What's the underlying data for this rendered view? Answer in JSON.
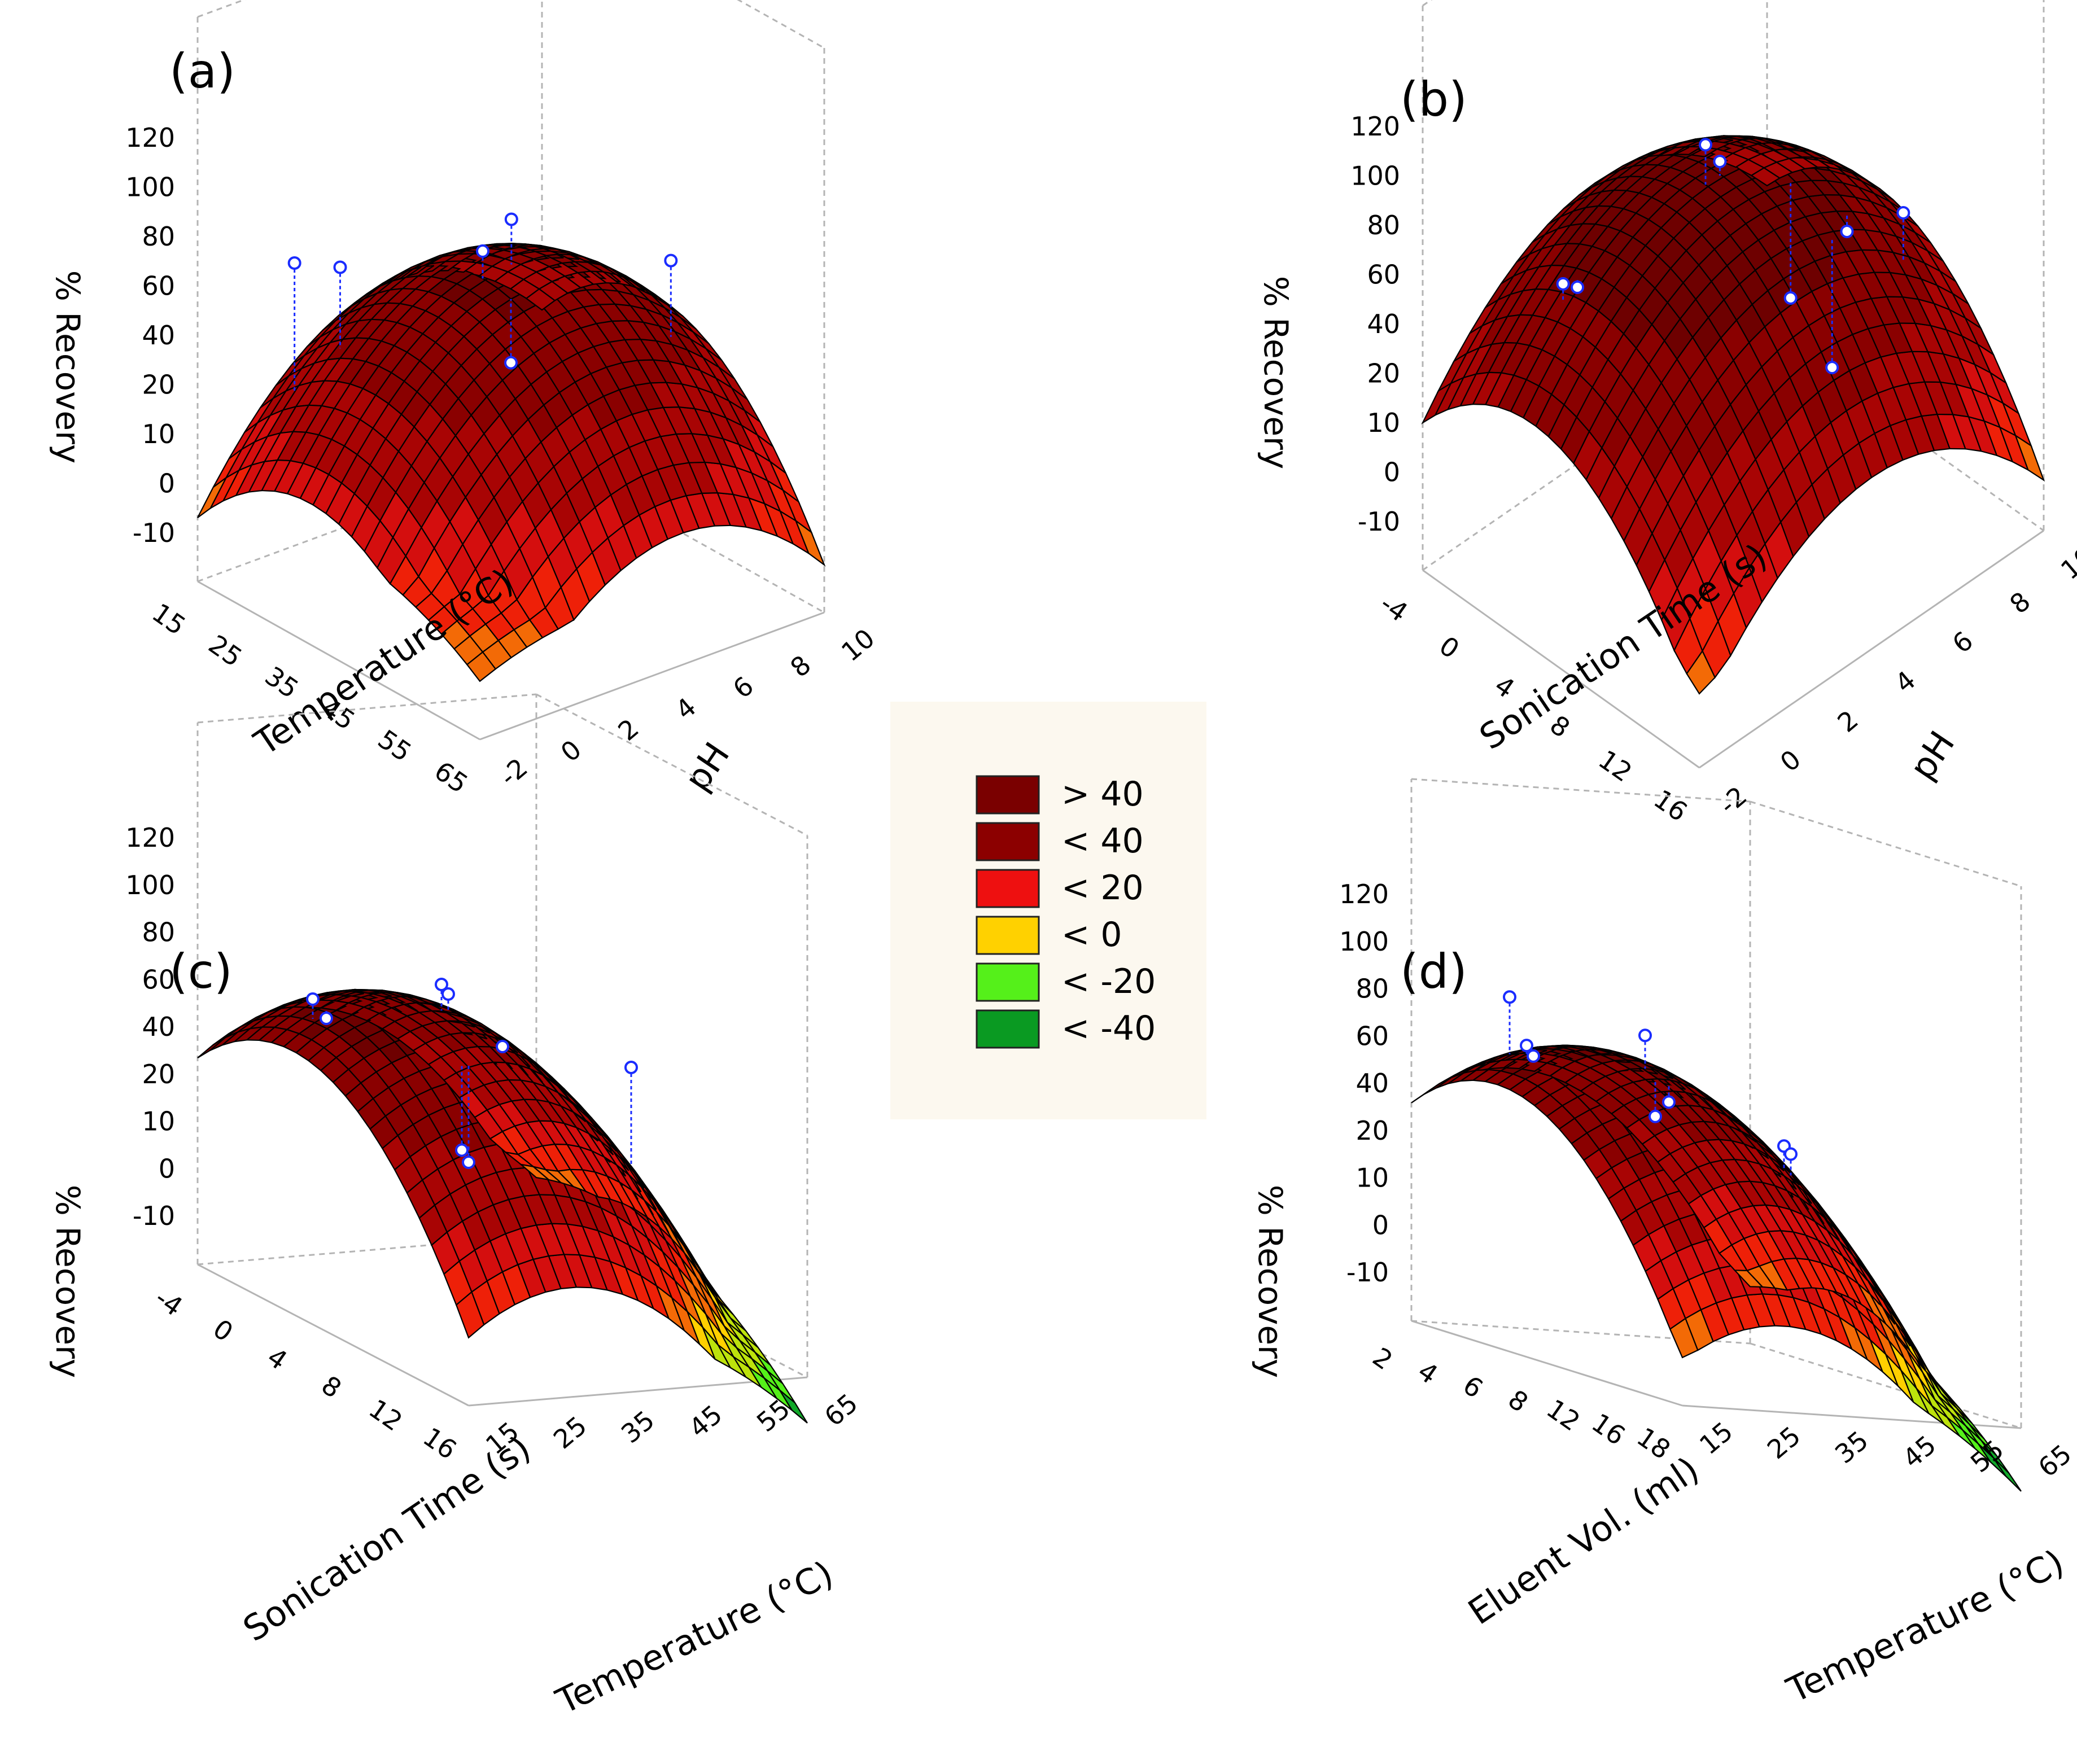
{
  "legend": {
    "background": "#fcf8ef",
    "items": [
      {
        "label": "> 40",
        "color": "#7a0000"
      },
      {
        "label": "< 40",
        "color": "#8c0000"
      },
      {
        "label": "< 20",
        "color": "#ee1010"
      },
      {
        "label": "< 0",
        "color": "#ffd100"
      },
      {
        "label": "< -20",
        "color": "#55f01a"
      },
      {
        "label": "< -40",
        "color": "#0a9a22"
      }
    ]
  },
  "colors": {
    "mesh": "#000000",
    "frame": "#b4b4b4",
    "points": "#1a2cff"
  },
  "chart_data": [
    {
      "panel": "(a)",
      "type": "surface3d",
      "xlabel": "Temperature (°C)",
      "ylabel": "pH",
      "zlabel": "% Recovery",
      "x_ticks": [
        "15",
        "25",
        "35",
        "45",
        "55",
        "65"
      ],
      "y_ticks": [
        "-2",
        "0",
        "2",
        "4",
        "6",
        "8",
        "10"
      ],
      "z_ticks": [
        "120",
        "100",
        "80",
        "60",
        "40",
        "20",
        "10",
        "0",
        "-10"
      ],
      "grid": true,
      "surface": {
        "x": [
          15,
          65
        ],
        "y": [
          -2,
          10
        ],
        "peak_x": 35,
        "peak_y": 5,
        "peak": 95,
        "corners": [
          0,
          30,
          30,
          -40
        ]
      },
      "points": [
        {
          "x": 22,
          "y": 0,
          "z": 100
        },
        {
          "x": 25,
          "y": 1,
          "z": 98
        },
        {
          "x": 35,
          "y": 4,
          "z": 104
        },
        {
          "x": 35,
          "y": 5,
          "z": 112
        },
        {
          "x": 40,
          "y": 4,
          "z": 68
        },
        {
          "x": 48,
          "y": 8,
          "z": 100
        }
      ]
    },
    {
      "panel": "(b)",
      "type": "surface3d",
      "xlabel": "Sonication Time (s)",
      "ylabel": "pH",
      "zlabel": "% Recovery",
      "x_ticks": [
        "-4",
        "0",
        "4",
        "8",
        "12",
        "16"
      ],
      "y_ticks": [
        "-2",
        "0",
        "2",
        "4",
        "6",
        "8",
        "10"
      ],
      "z_ticks": [
        "120",
        "100",
        "80",
        "60",
        "40",
        "20",
        "10",
        "0",
        "-10"
      ],
      "grid": true,
      "surface": {
        "x": [
          -4,
          16
        ],
        "y": [
          -2,
          10
        ],
        "peak_x": 4,
        "peak_y": 4,
        "peak": 110,
        "corners": [
          10,
          20,
          15,
          -45
        ]
      },
      "points": [
        {
          "x": 2,
          "y": 0,
          "z": 95
        },
        {
          "x": 2,
          "y": 0.5,
          "z": 90
        },
        {
          "x": 4,
          "y": 4,
          "z": 125
        },
        {
          "x": 4,
          "y": 4.5,
          "z": 115
        },
        {
          "x": 6,
          "y": 6,
          "z": 60
        },
        {
          "x": 8,
          "y": 7,
          "z": 85
        },
        {
          "x": 10,
          "y": 8,
          "z": 92
        },
        {
          "x": 9,
          "y": 6,
          "z": 45
        }
      ]
    },
    {
      "panel": "(c)",
      "type": "surface3d",
      "xlabel": "Sonication Time (s)",
      "ylabel": "Temperature (°C)",
      "zlabel": "% Recovery",
      "x_ticks": [
        "-4",
        "0",
        "4",
        "8",
        "12",
        "16"
      ],
      "y_ticks": [
        "15",
        "25",
        "35",
        "45",
        "55",
        "65"
      ],
      "z_ticks": [
        "120",
        "100",
        "80",
        "60",
        "40",
        "20",
        "10",
        "0",
        "-10"
      ],
      "grid": true,
      "surface": {
        "x": [
          -4,
          16
        ],
        "y": [
          15,
          65
        ],
        "peak_x": 3,
        "peak_y": 30,
        "peak": 100,
        "corners": [
          40,
          15,
          5,
          -15
        ]
      },
      "points": [
        {
          "x": 2,
          "y": 20,
          "z": 100
        },
        {
          "x": 2,
          "y": 22,
          "z": 92
        },
        {
          "x": 4,
          "y": 35,
          "z": 108
        },
        {
          "x": 4,
          "y": 36,
          "z": 104
        },
        {
          "x": 6,
          "y": 40,
          "z": 88
        },
        {
          "x": 8,
          "y": 30,
          "z": 55
        },
        {
          "x": 8,
          "y": 31,
          "z": 50
        },
        {
          "x": 8,
          "y": 55,
          "z": 82
        }
      ]
    },
    {
      "panel": "(d)",
      "type": "surface3d",
      "xlabel": "Eluent Vol. (ml)",
      "ylabel": "Temperature (°C)",
      "zlabel": "% Recovery",
      "x_ticks": [
        "2",
        "4",
        "6",
        "8",
        "12",
        "16",
        "18"
      ],
      "y_ticks": [
        "15",
        "25",
        "35",
        "45",
        "55",
        "65"
      ],
      "z_ticks": [
        "120",
        "100",
        "80",
        "60",
        "40",
        "20",
        "10",
        "0",
        "-10"
      ],
      "grid": true,
      "surface": {
        "x": [
          2,
          18
        ],
        "y": [
          15,
          65
        ],
        "peak_x": 7,
        "peak_y": 30,
        "peak": 100,
        "corners": [
          50,
          10,
          0,
          -20
        ]
      },
      "points": [
        {
          "x": 5,
          "y": 22,
          "z": 115
        },
        {
          "x": 6,
          "y": 22,
          "z": 98
        },
        {
          "x": 6,
          "y": 23,
          "z": 94
        },
        {
          "x": 9,
          "y": 32,
          "z": 110
        },
        {
          "x": 10,
          "y": 33,
          "z": 86
        },
        {
          "x": 10,
          "y": 31,
          "z": 80
        },
        {
          "x": 12,
          "y": 45,
          "z": 75
        },
        {
          "x": 12,
          "y": 46,
          "z": 72
        }
      ]
    }
  ]
}
